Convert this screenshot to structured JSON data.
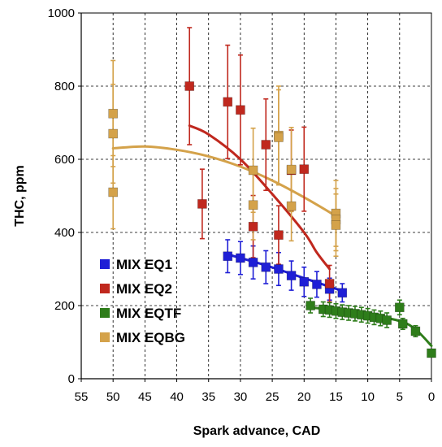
{
  "chart_data": {
    "type": "scatter",
    "xlabel": "Spark advance, CAD",
    "ylabel": "THC, ppm",
    "xlim": [
      55,
      0
    ],
    "ylim": [
      0,
      1000
    ],
    "x_reversed": true,
    "x_ticks": [
      55,
      50,
      45,
      40,
      35,
      30,
      25,
      20,
      15,
      10,
      5,
      0
    ],
    "y_ticks": [
      0,
      200,
      400,
      600,
      800,
      1000
    ],
    "grid": true,
    "legend_position": "lower-left",
    "series": [
      {
        "name": "MIX EQ1",
        "color": "#1f1fd6",
        "points": [
          {
            "x": 32,
            "y": 335,
            "err": 45
          },
          {
            "x": 30,
            "y": 330,
            "err": 45
          },
          {
            "x": 28,
            "y": 318,
            "err": 45
          },
          {
            "x": 26,
            "y": 305,
            "err": 45
          },
          {
            "x": 24,
            "y": 300,
            "err": 45
          },
          {
            "x": 22,
            "y": 282,
            "err": 40
          },
          {
            "x": 20,
            "y": 265,
            "err": 40
          },
          {
            "x": 18,
            "y": 258,
            "err": 35
          },
          {
            "x": 16,
            "y": 245,
            "err": 30
          },
          {
            "x": 14,
            "y": 235,
            "err": 25
          }
        ],
        "trend": [
          [
            32,
            340
          ],
          [
            26,
            310
          ],
          [
            20,
            275
          ],
          [
            14,
            240
          ]
        ]
      },
      {
        "name": "MIX EQ2",
        "color": "#c0281e",
        "points": [
          {
            "x": 38,
            "y": 800,
            "err": 160
          },
          {
            "x": 36,
            "y": 478,
            "err": 95
          },
          {
            "x": 32,
            "y": 757,
            "err": 155
          },
          {
            "x": 30,
            "y": 735,
            "err": 150
          },
          {
            "x": 28,
            "y": 416,
            "err": 85
          },
          {
            "x": 26,
            "y": 640,
            "err": 125
          },
          {
            "x": 24,
            "y": 393,
            "err": 80
          },
          {
            "x": 22,
            "y": 570,
            "err": 110
          },
          {
            "x": 20,
            "y": 573,
            "err": 115
          },
          {
            "x": 16,
            "y": 260,
            "err": 50
          }
        ],
        "trend": [
          [
            38,
            692
          ],
          [
            35,
            668
          ],
          [
            30,
            600
          ],
          [
            25,
            505
          ],
          [
            20,
            400
          ],
          [
            18,
            345
          ],
          [
            16,
            300
          ]
        ]
      },
      {
        "name": "MIX EQTF",
        "color": "#2e7d1a",
        "points": [
          {
            "x": 19,
            "y": 200,
            "err": 20
          },
          {
            "x": 17,
            "y": 190,
            "err": 20
          },
          {
            "x": 16,
            "y": 188,
            "err": 20
          },
          {
            "x": 15,
            "y": 185,
            "err": 20
          },
          {
            "x": 14,
            "y": 182,
            "err": 20
          },
          {
            "x": 13,
            "y": 180,
            "err": 20
          },
          {
            "x": 12,
            "y": 178,
            "err": 20
          },
          {
            "x": 11,
            "y": 175,
            "err": 20
          },
          {
            "x": 10,
            "y": 172,
            "err": 20
          },
          {
            "x": 9,
            "y": 168,
            "err": 20
          },
          {
            "x": 8,
            "y": 165,
            "err": 20
          },
          {
            "x": 7,
            "y": 160,
            "err": 20
          },
          {
            "x": 5,
            "y": 195,
            "err": 20
          },
          {
            "x": 4.5,
            "y": 150,
            "err": 15
          },
          {
            "x": 2.5,
            "y": 130,
            "err": 15
          },
          {
            "x": 0,
            "y": 70,
            "err": 10
          }
        ],
        "trend": [
          [
            19,
            195
          ],
          [
            15,
            187
          ],
          [
            10,
            175
          ],
          [
            5,
            158
          ],
          [
            2.5,
            135
          ],
          [
            0,
            90
          ]
        ]
      },
      {
        "name": "MIX EQBG",
        "color": "#d4a24a",
        "points": [
          {
            "x": 50,
            "y": 725,
            "err": 145
          },
          {
            "x": 50,
            "y": 670,
            "err": 135
          },
          {
            "x": 50,
            "y": 510,
            "err": 100
          },
          {
            "x": 28,
            "y": 570,
            "err": 115
          },
          {
            "x": 28,
            "y": 475,
            "err": 95
          },
          {
            "x": 24,
            "y": 665,
            "err": 135
          },
          {
            "x": 24,
            "y": 660,
            "err": 130
          },
          {
            "x": 22,
            "y": 572,
            "err": 115
          },
          {
            "x": 22,
            "y": 472,
            "err": 95
          },
          {
            "x": 15,
            "y": 452,
            "err": 90
          },
          {
            "x": 15,
            "y": 435,
            "err": 85
          },
          {
            "x": 15,
            "y": 420,
            "err": 85
          }
        ],
        "trend": [
          [
            50,
            630
          ],
          [
            45,
            635
          ],
          [
            40,
            626
          ],
          [
            35,
            608
          ],
          [
            30,
            580
          ],
          [
            25,
            542
          ],
          [
            20,
            496
          ],
          [
            15,
            445
          ]
        ]
      }
    ]
  }
}
